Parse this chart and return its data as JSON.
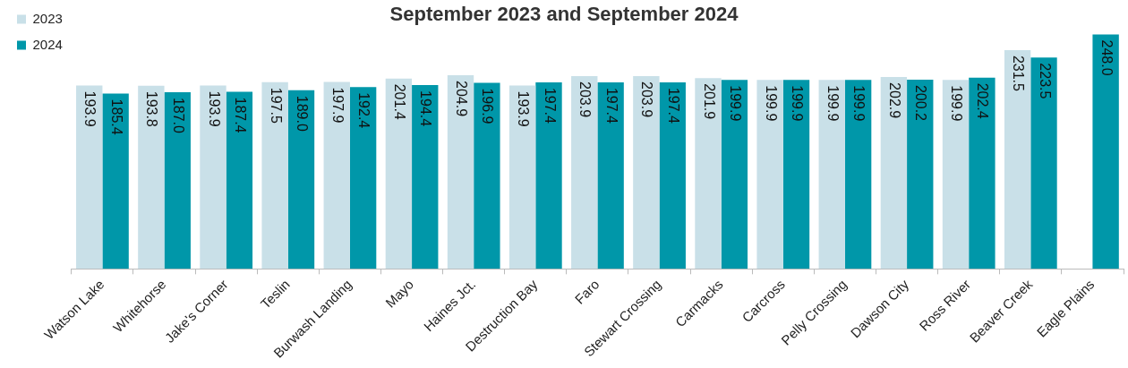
{
  "chart_data": {
    "type": "bar",
    "title": "September 2023 and September 2024",
    "categories": [
      "Watson Lake",
      "Whitehorse",
      "Jake's Corner",
      "Teslin",
      "Burwash Landing",
      "Mayo",
      "Haines Jct.",
      "Destruction Bay",
      "Faro",
      "Stewart Crossing",
      "Carmacks",
      "Carcross",
      "Pelly Crossing",
      "Dawson City",
      "Ross River",
      "Beaver Creek",
      "Eagle Plains"
    ],
    "series": [
      {
        "name": "2023",
        "color": "#c9e0e8",
        "values": [
          193.9,
          193.8,
          193.9,
          197.5,
          197.9,
          201.4,
          204.9,
          193.9,
          203.9,
          203.9,
          201.9,
          199.9,
          199.9,
          202.9,
          199.9,
          231.5,
          null
        ],
        "value_labels": [
          "193.9",
          "193.8",
          "193.9",
          "197.5",
          "197.9",
          "201.4",
          "204.9",
          "193.9",
          "203.9",
          "203.9",
          "201.9",
          "199.9",
          "199.9",
          "202.9",
          "199.9",
          "231.5",
          null
        ]
      },
      {
        "name": "2024",
        "color": "#0097a9",
        "values": [
          185.4,
          187,
          187.4,
          189,
          192.4,
          194.4,
          196.9,
          197.4,
          197.4,
          197.4,
          199.9,
          199.9,
          199.9,
          200.2,
          202.4,
          223.5,
          248
        ],
        "value_labels": [
          "185.4",
          "187.0",
          "187.4",
          "189.0",
          "192.4",
          "194.4",
          "196.9",
          "197.4",
          "197.4",
          "197.4",
          "199.9",
          "199.9",
          "199.9",
          "200.2",
          "202.4",
          "223.5",
          "248.0"
        ]
      }
    ],
    "legend": "top left",
    "tick_labels": "x"
  }
}
